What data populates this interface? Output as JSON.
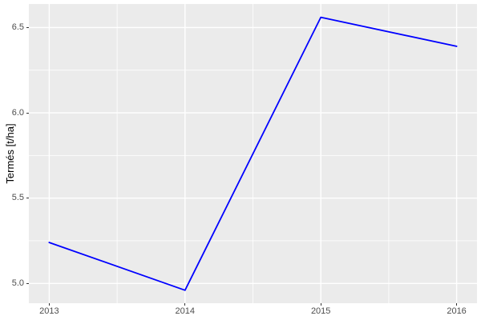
{
  "figure": {
    "background": "#FFFFFF",
    "panel_background": "#EBEBEB",
    "grid_color": "#FFFFFF",
    "tick_mark_color": "#333333",
    "tick_label_color": "#4D4D4D",
    "axis_title_color": "#000000"
  },
  "chart_data": {
    "type": "line",
    "title": "",
    "xlabel": "",
    "ylabel": "Termés [t/ha]",
    "x": [
      2013,
      2014,
      2015,
      2016
    ],
    "series": [
      {
        "name": "Termés",
        "values": [
          5.24,
          4.96,
          6.56,
          6.39
        ],
        "color": "#0000FF",
        "stroke_width": 1.8
      }
    ],
    "xlim": [
      2012.85,
      2016.15
    ],
    "ylim": [
      4.884,
      6.638
    ],
    "x_major_ticks": [
      2013,
      2014,
      2015,
      2016
    ],
    "x_tick_labels": [
      "2013",
      "2014",
      "2015",
      "2016"
    ],
    "x_minor_ticks": [
      2013.5,
      2014.5,
      2015.5
    ],
    "y_major_ticks": [
      5.0,
      5.5,
      6.0,
      6.5
    ],
    "y_tick_labels": [
      "5.0",
      "5.5",
      "6.0",
      "6.5"
    ],
    "y_minor_ticks": [
      5.25,
      5.75,
      6.25
    ],
    "grid": true,
    "legend_position": "none"
  }
}
